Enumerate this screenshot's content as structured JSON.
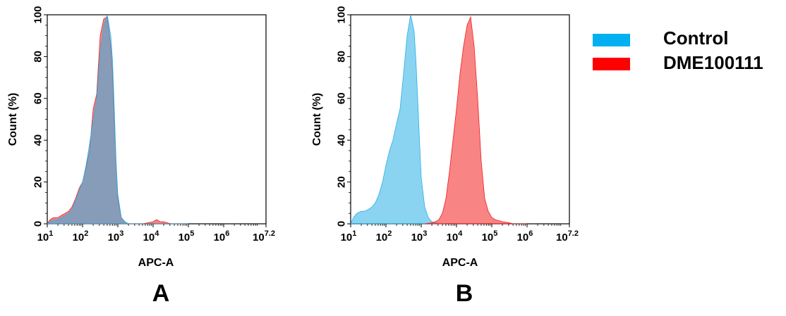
{
  "chart_data": [
    {
      "panel": "A",
      "type": "area",
      "xscale": "log",
      "xlim": [
        10,
        15848932
      ],
      "ylim": [
        0,
        100
      ],
      "xlabel": "APC-A",
      "ylabel": "Count  (%)",
      "x_ticks": [
        {
          "base": "10",
          "exp": "1"
        },
        {
          "base": "10",
          "exp": "2"
        },
        {
          "base": "10",
          "exp": "3"
        },
        {
          "base": "10",
          "exp": "4"
        },
        {
          "base": "10",
          "exp": "5"
        },
        {
          "base": "10",
          "exp": "6"
        },
        {
          "base": "10",
          "exp": "7.2"
        }
      ],
      "y_ticks": [
        "0",
        "20",
        "40",
        "60",
        "80",
        "100"
      ],
      "series": [
        {
          "name": "DME100111",
          "color": "#f21f1f",
          "x": [
            10,
            12,
            15,
            20,
            25,
            32,
            40,
            50,
            63,
            80,
            100,
            126,
            158,
            200,
            251,
            316,
            398,
            501,
            631,
            708,
            794,
            891,
            1000,
            1259,
            1585,
            1995,
            2512,
            5012,
            10000,
            12589,
            15849,
            19953,
            25119,
            31623,
            100000
          ],
          "y": [
            0,
            2,
            3,
            3,
            4,
            5,
            6,
            8,
            12,
            17,
            20,
            27,
            35,
            55,
            62,
            90,
            98,
            99,
            85,
            72,
            50,
            28,
            12,
            3,
            1,
            0,
            0,
            0,
            1,
            2,
            1,
            1,
            0.5,
            0,
            0
          ]
        },
        {
          "name": "Control",
          "color": "#2ab0e6",
          "x": [
            10,
            12,
            15,
            20,
            25,
            32,
            40,
            50,
            63,
            80,
            100,
            126,
            158,
            200,
            251,
            316,
            398,
            501,
            631,
            708,
            794,
            891,
            1000,
            1259,
            1585,
            1995,
            2512,
            5012,
            10000,
            100000
          ],
          "y": [
            0,
            1,
            2,
            2,
            3,
            4,
            5,
            7,
            11,
            16,
            20,
            28,
            38,
            50,
            60,
            82,
            95,
            100,
            90,
            78,
            55,
            30,
            14,
            3,
            1,
            0,
            0,
            0,
            0,
            0
          ]
        }
      ]
    },
    {
      "panel": "B",
      "type": "area",
      "xscale": "log",
      "xlim": [
        10,
        15848932
      ],
      "ylim": [
        0,
        100
      ],
      "xlabel": "APC-A",
      "ylabel": "Count  (%)",
      "x_ticks": [
        {
          "base": "10",
          "exp": "1"
        },
        {
          "base": "10",
          "exp": "2"
        },
        {
          "base": "10",
          "exp": "3"
        },
        {
          "base": "10",
          "exp": "4"
        },
        {
          "base": "10",
          "exp": "5"
        },
        {
          "base": "10",
          "exp": "6"
        },
        {
          "base": "10",
          "exp": "7.2"
        }
      ],
      "y_ticks": [
        "0",
        "20",
        "40",
        "60",
        "80",
        "100"
      ],
      "series": [
        {
          "name": "Control",
          "color": "#2ab0e6",
          "x": [
            10,
            12,
            15,
            20,
            25,
            32,
            40,
            50,
            63,
            80,
            100,
            126,
            158,
            200,
            251,
            316,
            398,
            501,
            631,
            708,
            794,
            891,
            1000,
            1259,
            1585,
            1995,
            2512,
            3162,
            5012
          ],
          "y": [
            0,
            3,
            5,
            6,
            6,
            7,
            8,
            10,
            14,
            20,
            28,
            35,
            40,
            48,
            55,
            72,
            90,
            100,
            92,
            78,
            60,
            40,
            22,
            8,
            3,
            1,
            0.5,
            0,
            0
          ]
        },
        {
          "name": "DME100111",
          "color": "#f21f1f",
          "x": [
            1259,
            1995,
            2512,
            3162,
            3981,
            5012,
            6310,
            7943,
            10000,
            12589,
            15849,
            19953,
            25119,
            31623,
            39811,
            50119,
            63096,
            79433,
            100000,
            125893,
            158489,
            199526,
            251189,
            316228,
            398107,
            1000000
          ],
          "y": [
            0,
            0.5,
            1,
            2,
            5,
            12,
            25,
            40,
            55,
            72,
            85,
            95,
            99,
            85,
            60,
            30,
            12,
            6,
            3,
            2,
            1.5,
            1,
            0.8,
            0.5,
            0,
            0
          ]
        }
      ]
    }
  ],
  "panel_labels": [
    "A",
    "B"
  ],
  "legend": [
    {
      "label": "Control",
      "color": "#00b0f0"
    },
    {
      "label": "DME100111",
      "color": "#ff0000"
    }
  ]
}
